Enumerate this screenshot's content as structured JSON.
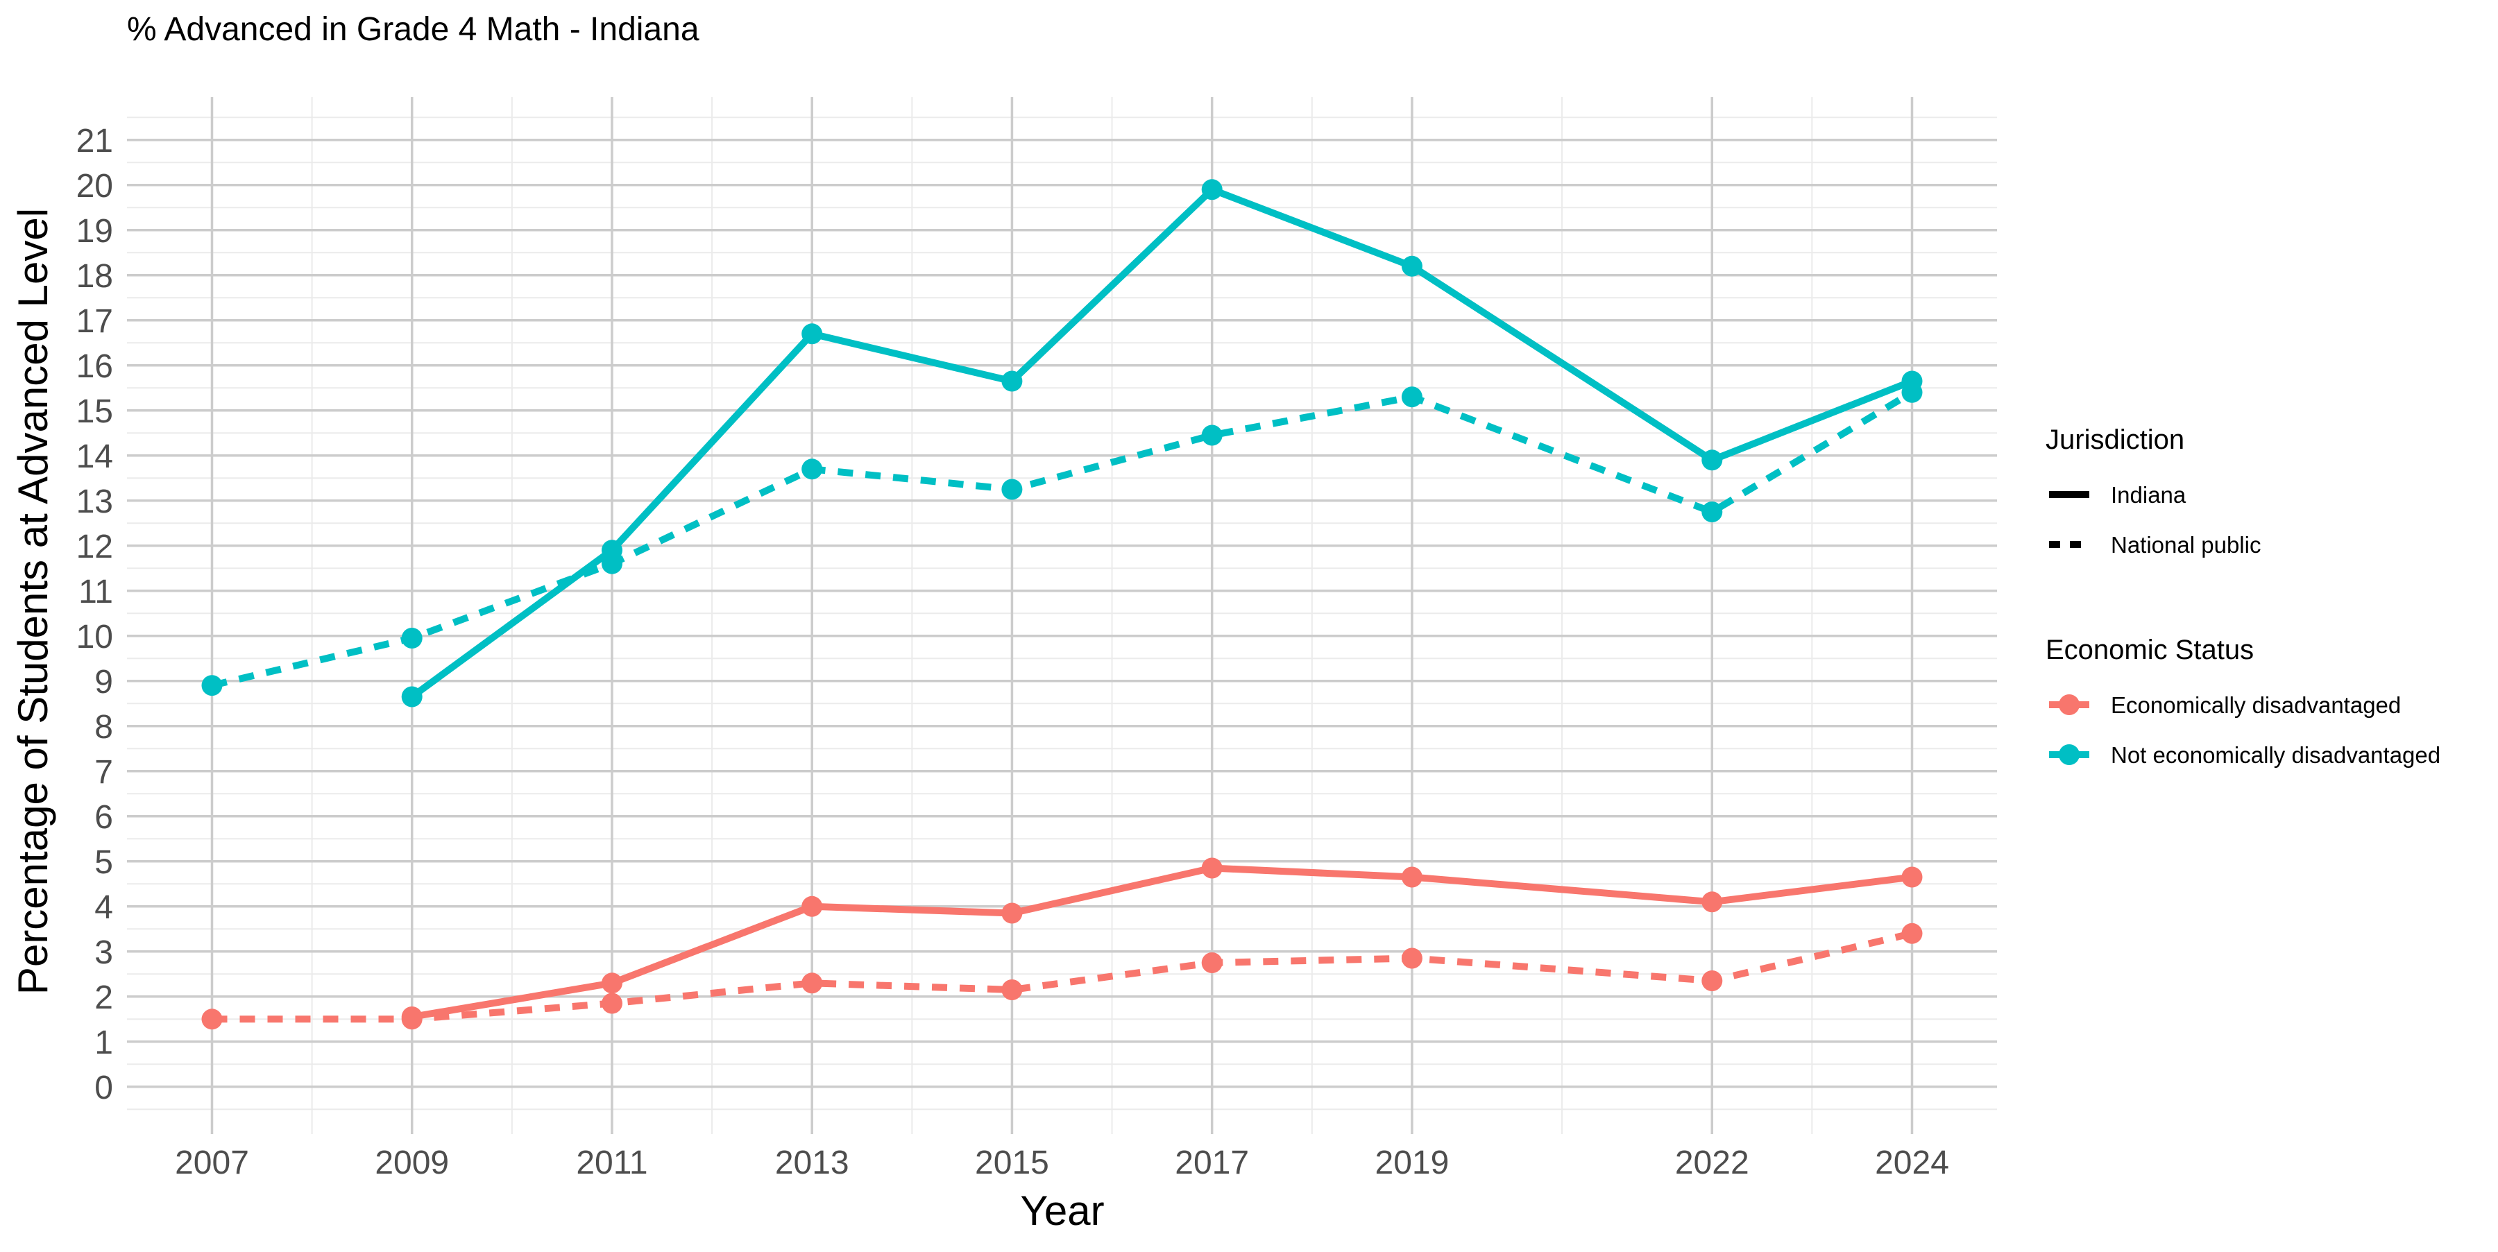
{
  "chart_data": {
    "type": "line",
    "title": "% Advanced in Grade 4 Math - Indiana",
    "xlabel": "Year",
    "ylabel": "Percentage of Students at Advanced Level",
    "x_ticks": [
      2007,
      2009,
      2011,
      2013,
      2015,
      2017,
      2019,
      2022,
      2024
    ],
    "xlim": [
      2006.15,
      2024.85
    ],
    "y_ticks": [
      0,
      1,
      2,
      3,
      4,
      5,
      6,
      7,
      8,
      9,
      10,
      11,
      12,
      13,
      14,
      15,
      16,
      17,
      18,
      19,
      20,
      21
    ],
    "ylim": [
      -1.05,
      21.95
    ],
    "grid": true,
    "legend_position": "right",
    "legend": {
      "linetype_title": "Jurisdiction",
      "linetype_entries": [
        {
          "label": "Indiana",
          "dash": "solid"
        },
        {
          "label": "National public",
          "dash": "dashed"
        }
      ],
      "color_title": "Economic Status",
      "color_entries": [
        {
          "label": "Economically disadvantaged",
          "color": "#F8766D"
        },
        {
          "label": "Not economically disadvantaged",
          "color": "#00BFC4"
        }
      ]
    },
    "series": [
      {
        "jurisdiction": "Indiana",
        "status": "Not economically disadvantaged",
        "color": "#00BFC4",
        "dash": "solid",
        "points": [
          [
            2009,
            8.65
          ],
          [
            2011,
            11.9
          ],
          [
            2013,
            16.7
          ],
          [
            2015,
            15.65
          ],
          [
            2017,
            19.9
          ],
          [
            2019,
            18.2
          ],
          [
            2022,
            13.9
          ],
          [
            2024,
            15.65
          ]
        ]
      },
      {
        "jurisdiction": "National public",
        "status": "Not economically disadvantaged",
        "color": "#00BFC4",
        "dash": "dashed",
        "points": [
          [
            2007,
            8.9
          ],
          [
            2009,
            9.95
          ],
          [
            2011,
            11.6
          ],
          [
            2013,
            13.7
          ],
          [
            2015,
            13.25
          ],
          [
            2017,
            14.45
          ],
          [
            2019,
            15.3
          ],
          [
            2022,
            12.75
          ],
          [
            2024,
            15.4
          ]
        ]
      },
      {
        "jurisdiction": "Indiana",
        "status": "Economically disadvantaged",
        "color": "#F8766D",
        "dash": "solid",
        "points": [
          [
            2009,
            1.55
          ],
          [
            2011,
            2.3
          ],
          [
            2013,
            4.0
          ],
          [
            2015,
            3.85
          ],
          [
            2017,
            4.85
          ],
          [
            2019,
            4.65
          ],
          [
            2022,
            4.1
          ],
          [
            2024,
            4.65
          ]
        ]
      },
      {
        "jurisdiction": "National public",
        "status": "Economically disadvantaged",
        "color": "#F8766D",
        "dash": "dashed",
        "points": [
          [
            2007,
            1.5
          ],
          [
            2009,
            1.5
          ],
          [
            2011,
            1.85
          ],
          [
            2013,
            2.3
          ],
          [
            2015,
            2.15
          ],
          [
            2017,
            2.75
          ],
          [
            2019,
            2.85
          ],
          [
            2022,
            2.35
          ],
          [
            2024,
            3.4
          ]
        ]
      }
    ]
  }
}
